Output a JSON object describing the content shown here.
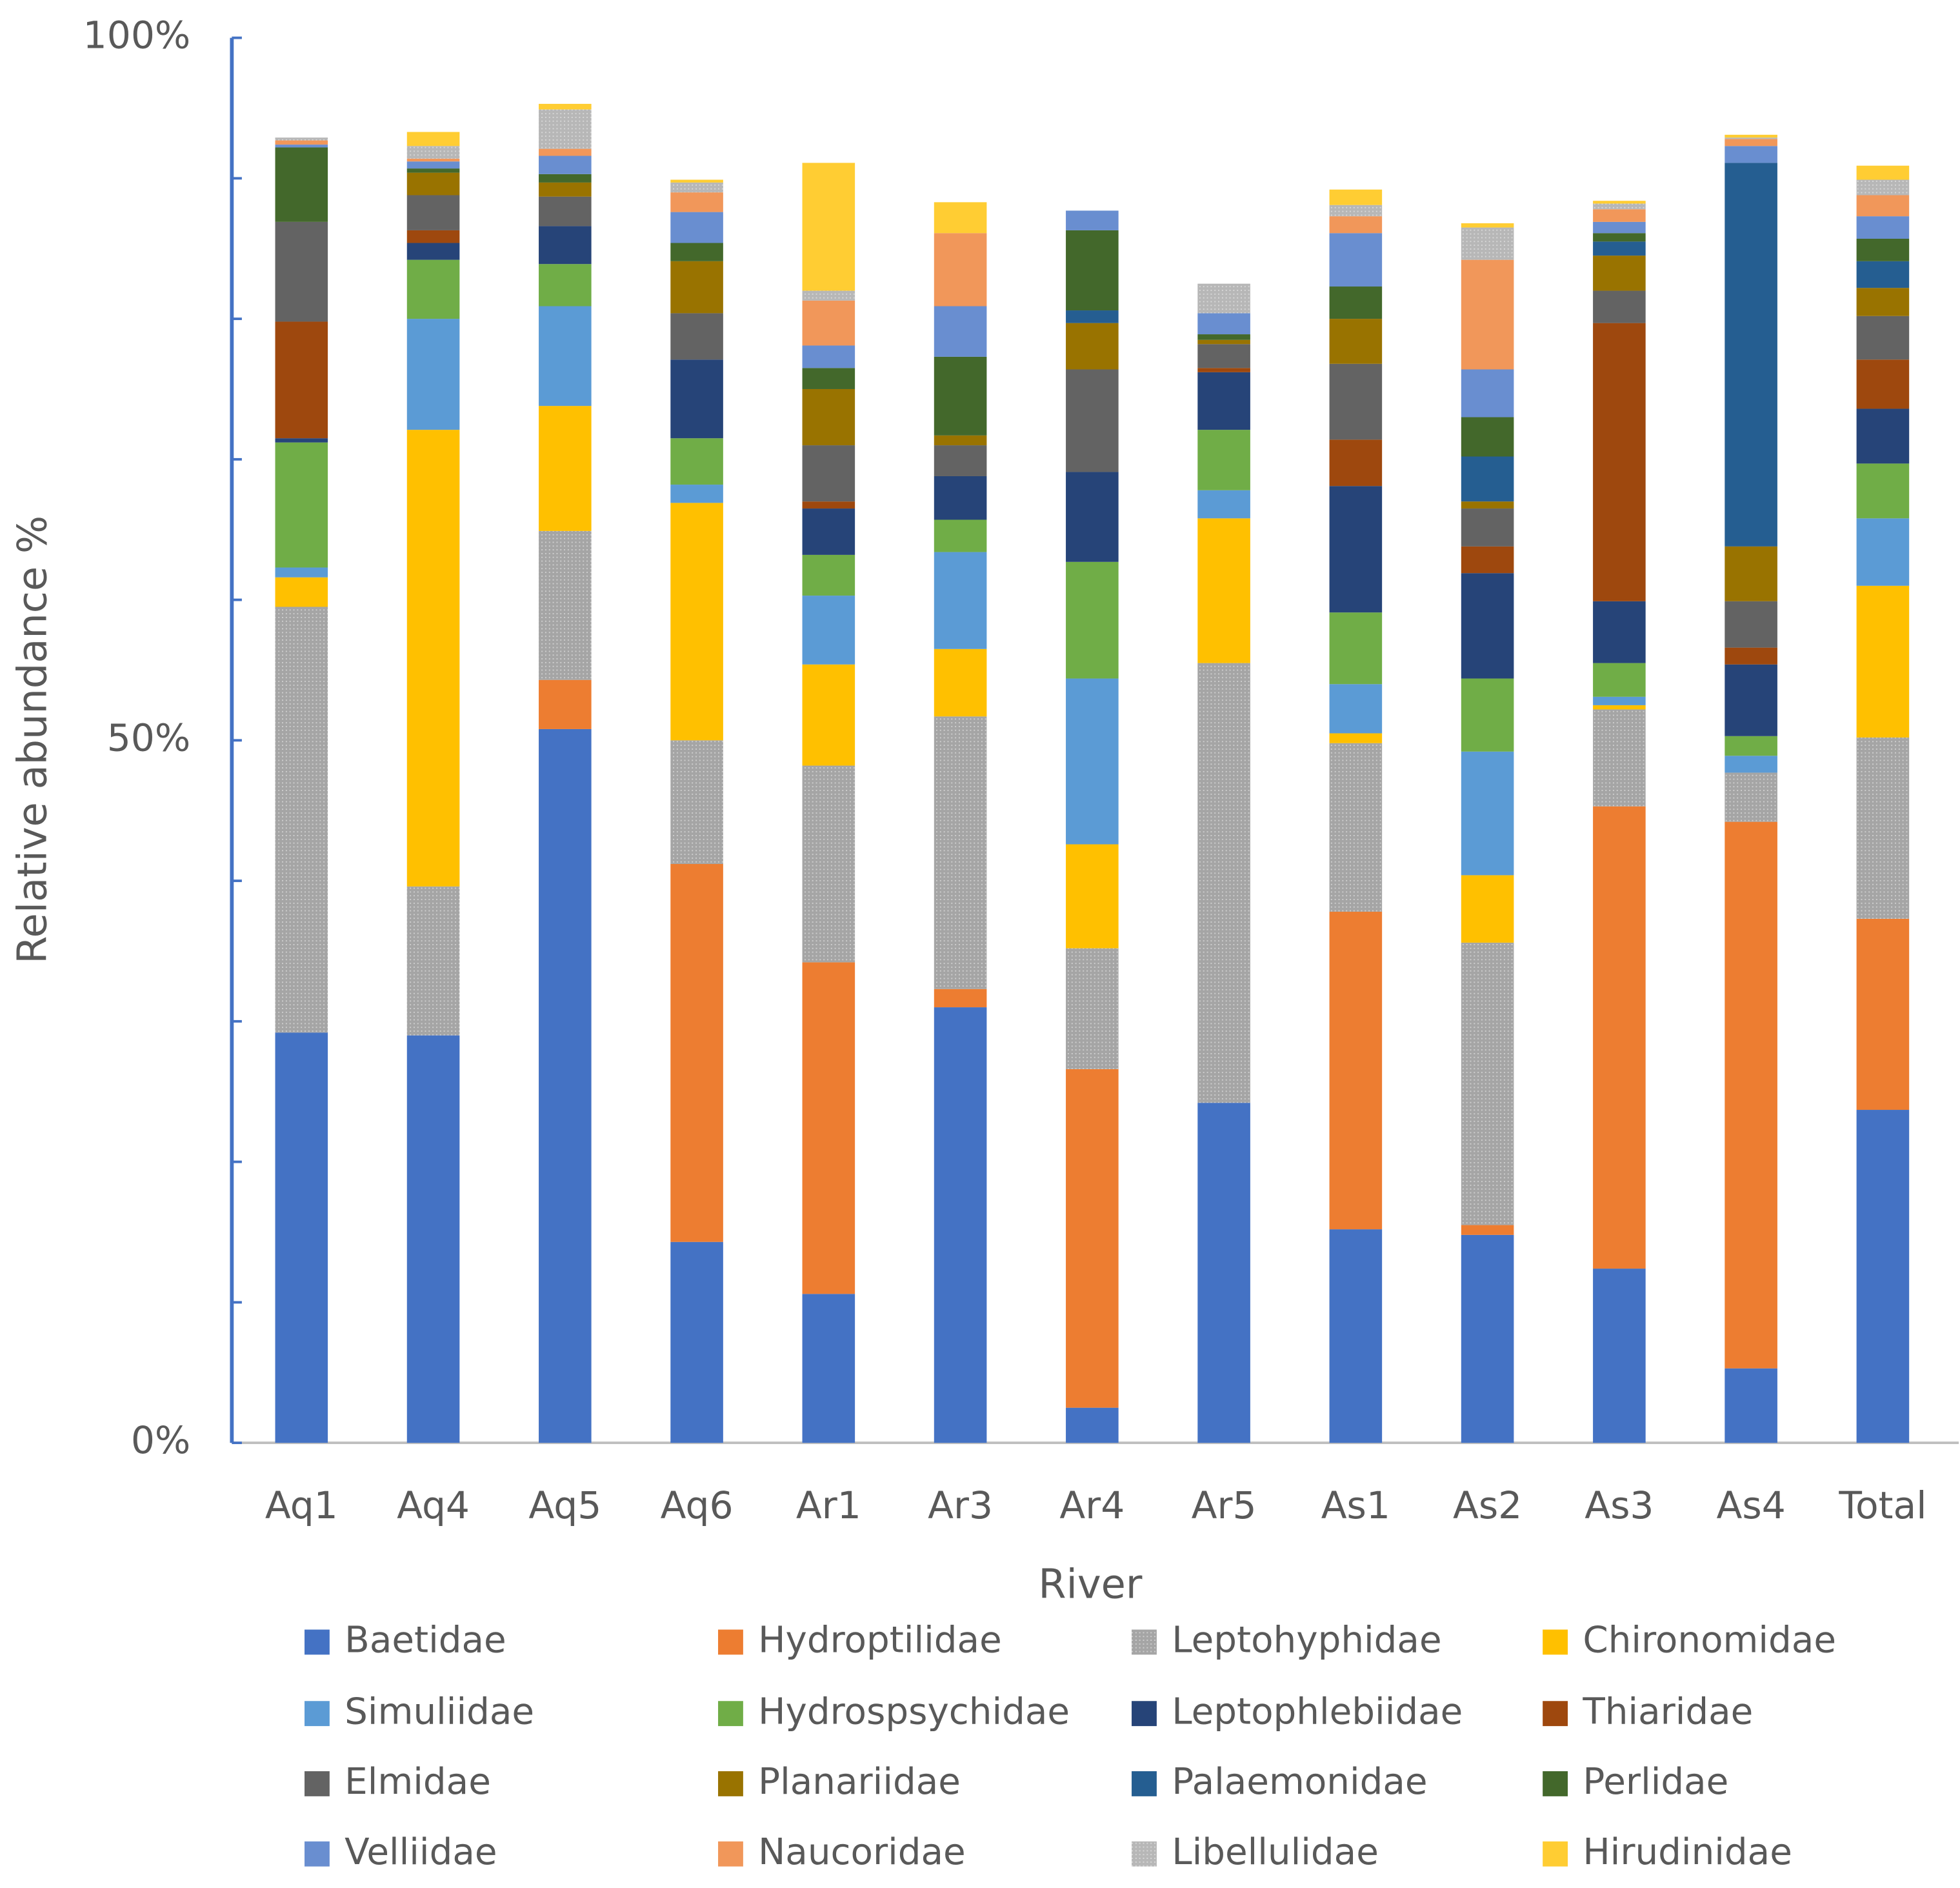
{
  "chart_data": {
    "type": "stacked_bar",
    "x_label": "River",
    "y_label": "Relative abundance %",
    "categories": [
      "Aq1",
      "Aq4",
      "Aq5",
      "Aq6",
      "Ar1",
      "Ar3",
      "Ar4",
      "Ar5",
      "As1",
      "As2",
      "As3",
      "As4",
      "Total"
    ],
    "ylim": [
      0,
      100
    ],
    "yticks": [
      {
        "value": 0,
        "label": "0%"
      },
      {
        "value": 50,
        "label": "50%"
      },
      {
        "value": 100,
        "label": "100%"
      }
    ],
    "minor_yticks": [
      10,
      20,
      30,
      40,
      60,
      70,
      80,
      90
    ],
    "series": [
      {
        "name": "Baetidae",
        "color": "#4472c4",
        "values": [
          29.2,
          29.0,
          50.8,
          14.3,
          10.6,
          31.0,
          2.5,
          24.2,
          15.2,
          14.8,
          12.4,
          5.3,
          23.7
        ]
      },
      {
        "name": "Hydroptilidae",
        "color": "#ed7d31",
        "values": [
          0,
          0,
          3.5,
          26.9,
          23.6,
          1.3,
          24.1,
          0,
          22.6,
          0.7,
          32.9,
          38.9,
          13.6
        ]
      },
      {
        "name": "Leptohyphidae",
        "color": "#a5a5a5",
        "values": [
          30.3,
          10.6,
          10.6,
          8.8,
          14.0,
          19.4,
          8.6,
          31.3,
          12.0,
          20.1,
          6.9,
          3.5,
          12.9
        ]
      },
      {
        "name": "Chironomidae",
        "color": "#ffc000",
        "values": [
          2.1,
          32.5,
          8.9,
          16.9,
          7.2,
          4.8,
          7.4,
          10.3,
          0.7,
          4.8,
          0.3,
          0,
          10.8
        ]
      },
      {
        "name": "Simuliidae",
        "color": "#5b9bd5",
        "values": [
          0.7,
          7.9,
          7.1,
          1.3,
          4.9,
          6.9,
          11.8,
          2.0,
          3.5,
          8.8,
          0.6,
          1.2,
          4.8
        ]
      },
      {
        "name": "Hydrospsychidae",
        "color": "#70ad47",
        "values": [
          8.9,
          4.2,
          3.0,
          3.3,
          2.9,
          2.3,
          8.3,
          4.3,
          5.1,
          5.2,
          2.4,
          1.4,
          3.9
        ]
      },
      {
        "name": "Leptophlebiidae",
        "color": "#264478",
        "values": [
          0.3,
          1.2,
          2.7,
          5.6,
          3.3,
          3.1,
          6.4,
          4.1,
          9.0,
          7.5,
          4.4,
          5.1,
          3.9
        ]
      },
      {
        "name": "Thiaridae",
        "color": "#9e480e",
        "values": [
          8.3,
          0.9,
          0,
          0,
          0.5,
          0,
          0,
          0.3,
          3.3,
          1.9,
          19.8,
          1.2,
          3.5
        ]
      },
      {
        "name": "Elmidae",
        "color": "#636363",
        "values": [
          7.1,
          2.5,
          2.1,
          3.3,
          4.0,
          2.2,
          7.3,
          1.7,
          5.4,
          2.7,
          2.3,
          3.3,
          3.1
        ]
      },
      {
        "name": "Planariidae",
        "color": "#997300",
        "values": [
          0,
          1.6,
          1.0,
          3.7,
          4.0,
          0.7,
          3.3,
          0.3,
          3.2,
          0.5,
          2.5,
          3.9,
          2.0
        ]
      },
      {
        "name": "Palaemonidae",
        "color": "#255e91",
        "values": [
          0,
          0,
          0,
          0,
          0,
          0,
          0.9,
          0,
          0,
          3.2,
          1.0,
          27.3,
          1.9
        ]
      },
      {
        "name": "Perlidae",
        "color": "#43682b",
        "values": [
          5.3,
          0.3,
          0.6,
          1.3,
          1.5,
          5.6,
          5.7,
          0.4,
          2.3,
          2.8,
          0.6,
          0,
          1.6
        ]
      },
      {
        "name": "Velliidae",
        "color": "#698ed0",
        "values": [
          0.2,
          0.5,
          1.3,
          2.2,
          1.6,
          3.6,
          1.4,
          1.5,
          3.8,
          3.4,
          0.8,
          1.2,
          1.6
        ]
      },
      {
        "name": "Naucoridae",
        "color": "#f1975a",
        "values": [
          0.3,
          0.2,
          0.5,
          1.4,
          3.2,
          5.2,
          0,
          0,
          1.2,
          7.8,
          0.9,
          0.5,
          1.5
        ]
      },
      {
        "name": "Libellulidae",
        "color": "#b7b7b7",
        "values": [
          0.2,
          0.9,
          2.8,
          0.7,
          0.7,
          0,
          0,
          2.1,
          0.8,
          2.3,
          0.4,
          0.1,
          1.1
        ]
      },
      {
        "name": "Hirudinidae",
        "color": "#ffcd33",
        "values": [
          0,
          1.0,
          0.4,
          0.2,
          9.1,
          2.2,
          0,
          0,
          1.1,
          0.3,
          0.2,
          0.2,
          1.0
        ]
      }
    ]
  }
}
